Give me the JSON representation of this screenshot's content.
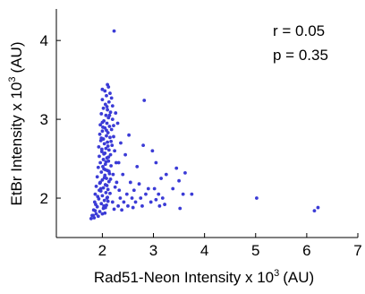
{
  "chart_data": {
    "type": "scatter",
    "title": "",
    "xlabel": "Rad51-Neon Intensity x 10",
    "xlabel_exponent": "3",
    "xlabel_unit": "(AU)",
    "ylabel": "EtBr Intensity x 10",
    "ylabel_exponent": "3",
    "ylabel_unit": "(AU)",
    "xlim": [
      1.1,
      7.0
    ],
    "ylim": [
      1.5,
      4.4
    ],
    "xticks": [
      2,
      3,
      4,
      5,
      6,
      7
    ],
    "xtick_labels": [
      "2",
      "3",
      "4",
      "5",
      "6",
      "7"
    ],
    "yticks": [
      2,
      3,
      4
    ],
    "ytick_labels": [
      "2",
      "3",
      "4"
    ],
    "grid": false,
    "annotations": [
      "r = 0.05",
      "p = 0.35"
    ],
    "marker_color": "#3b3bd6",
    "series": [
      {
        "points": [
          [
            2.23,
            4.12
          ],
          [
            2.1,
            3.44
          ],
          [
            2.12,
            3.41
          ],
          [
            2.05,
            3.36
          ],
          [
            2.15,
            3.33
          ],
          [
            2.08,
            3.3
          ],
          [
            2.18,
            3.27
          ],
          [
            2.0,
            3.25
          ],
          [
            2.13,
            3.22
          ],
          [
            2.06,
            3.19
          ],
          [
            2.2,
            3.17
          ],
          [
            2.02,
            3.14
          ],
          [
            2.1,
            3.12
          ],
          [
            2.16,
            3.09
          ],
          [
            1.98,
            3.07
          ],
          [
            2.07,
            3.05
          ],
          [
            2.12,
            3.02
          ],
          [
            2.2,
            3.0
          ],
          [
            2.03,
            2.98
          ],
          [
            2.09,
            2.95
          ],
          [
            1.96,
            2.93
          ],
          [
            2.14,
            2.91
          ],
          [
            2.05,
            2.89
          ],
          [
            2.18,
            2.87
          ],
          [
            2.0,
            2.85
          ],
          [
            2.11,
            2.83
          ],
          [
            1.95,
            2.81
          ],
          [
            2.08,
            2.79
          ],
          [
            2.15,
            2.77
          ],
          [
            2.02,
            2.75
          ],
          [
            1.97,
            2.73
          ],
          [
            2.1,
            2.71
          ],
          [
            2.04,
            2.69
          ],
          [
            2.19,
            2.67
          ],
          [
            1.93,
            2.65
          ],
          [
            2.07,
            2.63
          ],
          [
            2.13,
            2.61
          ],
          [
            1.99,
            2.59
          ],
          [
            2.05,
            2.57
          ],
          [
            2.16,
            2.55
          ],
          [
            1.94,
            2.53
          ],
          [
            2.09,
            2.51
          ],
          [
            2.02,
            2.49
          ],
          [
            2.12,
            2.47
          ],
          [
            1.96,
            2.45
          ],
          [
            2.06,
            2.43
          ],
          [
            2.17,
            2.41
          ],
          [
            1.92,
            2.39
          ],
          [
            2.03,
            2.37
          ],
          [
            2.1,
            2.35
          ],
          [
            1.98,
            2.33
          ],
          [
            2.14,
            2.31
          ],
          [
            2.05,
            2.29
          ],
          [
            1.9,
            2.27
          ],
          [
            2.08,
            2.25
          ],
          [
            2.0,
            2.23
          ],
          [
            2.13,
            2.21
          ],
          [
            1.95,
            2.19
          ],
          [
            2.06,
            2.17
          ],
          [
            1.88,
            2.15
          ],
          [
            2.02,
            2.13
          ],
          [
            2.11,
            2.11
          ],
          [
            1.97,
            2.09
          ],
          [
            2.07,
            2.07
          ],
          [
            1.86,
            2.05
          ],
          [
            2.0,
            2.03
          ],
          [
            2.1,
            2.01
          ],
          [
            1.93,
            1.99
          ],
          [
            2.04,
            1.97
          ],
          [
            1.85,
            1.95
          ],
          [
            1.98,
            1.93
          ],
          [
            2.08,
            1.91
          ],
          [
            1.9,
            1.89
          ],
          [
            2.02,
            1.87
          ],
          [
            1.83,
            1.85
          ],
          [
            1.95,
            1.83
          ],
          [
            2.05,
            1.81
          ],
          [
            1.88,
            1.8
          ],
          [
            1.8,
            1.78
          ],
          [
            1.92,
            1.77
          ],
          [
            1.84,
            1.75
          ],
          [
            1.78,
            1.74
          ],
          [
            2.0,
            3.38
          ],
          [
            2.09,
            3.16
          ],
          [
            2.14,
            3.05
          ],
          [
            2.01,
            2.9
          ],
          [
            2.17,
            2.72
          ],
          [
            1.99,
            2.62
          ],
          [
            2.12,
            2.52
          ],
          [
            2.06,
            2.36
          ],
          [
            2.16,
            2.24
          ],
          [
            1.96,
            2.2
          ],
          [
            2.09,
            2.16
          ],
          [
            1.94,
            2.1
          ],
          [
            2.15,
            2.06
          ],
          [
            1.91,
            2.02
          ],
          [
            2.11,
            1.96
          ],
          [
            1.87,
            1.92
          ],
          [
            2.06,
            1.88
          ],
          [
            1.86,
            1.84
          ],
          [
            2.0,
            1.8
          ],
          [
            1.82,
            1.78
          ],
          [
            2.0,
            2.96
          ],
          [
            2.08,
            2.86
          ],
          [
            1.98,
            2.76
          ],
          [
            2.11,
            2.66
          ],
          [
            2.03,
            2.56
          ],
          [
            2.07,
            2.46
          ],
          [
            2.01,
            2.4
          ],
          [
            2.13,
            2.34
          ],
          [
            2.04,
            2.26
          ],
          [
            1.97,
            2.12
          ],
          [
            2.09,
            2.0
          ],
          [
            2.03,
            1.9
          ],
          [
            2.22,
            2.92
          ],
          [
            2.24,
            2.6
          ],
          [
            2.21,
            2.3
          ],
          [
            2.25,
            2.14
          ],
          [
            2.2,
            1.95
          ],
          [
            2.23,
            1.86
          ],
          [
            2.27,
            2.45
          ],
          [
            2.22,
            2.78
          ],
          [
            2.26,
            3.08
          ],
          [
            2.3,
            2.95
          ],
          [
            2.32,
            2.45
          ],
          [
            2.28,
            2.2
          ],
          [
            2.35,
            2.0
          ],
          [
            2.31,
            1.9
          ],
          [
            2.36,
            2.7
          ],
          [
            2.33,
            2.1
          ],
          [
            2.38,
            1.85
          ],
          [
            2.4,
            2.3
          ],
          [
            2.42,
            1.95
          ],
          [
            2.45,
            2.55
          ],
          [
            2.48,
            2.05
          ],
          [
            2.5,
            1.9
          ],
          [
            2.52,
            2.8
          ],
          [
            2.55,
            2.2
          ],
          [
            2.58,
            2.0
          ],
          [
            2.6,
            1.88
          ],
          [
            2.62,
            2.1
          ],
          [
            2.65,
            1.95
          ],
          [
            2.68,
            2.4
          ],
          [
            2.82,
            3.24
          ],
          [
            2.8,
            2.67
          ],
          [
            2.72,
            2.18
          ],
          [
            2.75,
            2.0
          ],
          [
            2.78,
            1.9
          ],
          [
            2.85,
            2.05
          ],
          [
            2.9,
            2.12
          ],
          [
            2.95,
            1.95
          ],
          [
            2.98,
            2.6
          ],
          [
            3.02,
            2.12
          ],
          [
            3.05,
            1.98
          ],
          [
            3.1,
            2.05
          ],
          [
            3.12,
            1.9
          ],
          [
            3.15,
            2.25
          ],
          [
            3.18,
            2.0
          ],
          [
            3.22,
            1.92
          ],
          [
            3.25,
            2.3
          ],
          [
            3.05,
            2.45
          ],
          [
            3.38,
            2.12
          ],
          [
            3.45,
            2.38
          ],
          [
            3.5,
            2.22
          ],
          [
            3.52,
            1.87
          ],
          [
            3.58,
            2.05
          ],
          [
            3.62,
            2.32
          ],
          [
            3.75,
            2.05
          ],
          [
            5.02,
            2.0
          ],
          [
            6.15,
            1.84
          ],
          [
            6.22,
            1.88
          ]
        ]
      }
    ]
  }
}
